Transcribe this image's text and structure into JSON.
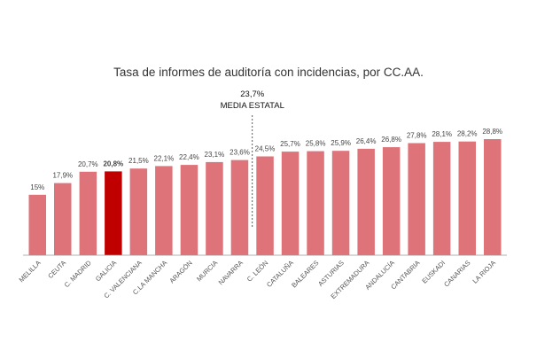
{
  "colors": {
    "bar": "#df737a",
    "highlight": "#c00000",
    "highlight_label": "#c00000",
    "axis": "#999999",
    "avg_line": "#333333"
  },
  "chart_data": {
    "type": "bar",
    "title": "Tasa de informes de auditoría con incidencias, por CC.AA.",
    "xlabel": "",
    "ylabel": "",
    "ylim": [
      0,
      30
    ],
    "grid": false,
    "categories": [
      "MELILLA",
      "CEUTA",
      "C. MADRID",
      "GALICIA",
      "C. VALENCIANA",
      "C.LA MANCHA",
      "ARAGÓN",
      "MURCIA",
      "NAVARRA",
      "C. LEÓN",
      "CATALUÑA",
      "BALEARES",
      "ASTURIAS",
      "EXTREMADURA",
      "ANDALUCÍA",
      "CANTABRIA",
      "EUSKADI",
      "CANARIAS",
      "LA RIOJA"
    ],
    "values": [
      15,
      17.9,
      20.7,
      20.8,
      21.5,
      22.1,
      22.4,
      23.1,
      23.6,
      24.5,
      25.7,
      25.8,
      25.9,
      26.4,
      26.8,
      27.8,
      28.1,
      28.2,
      28.8
    ],
    "value_labels": [
      "15%",
      "17,9%",
      "20,7%",
      "20,8%",
      "21,5%",
      "22,1%",
      "22,4%",
      "23,1%",
      "23,6%",
      "24,5%",
      "25,7%",
      "25,8%",
      "25,9%",
      "26,4%",
      "26,8%",
      "27,8%",
      "28,1%",
      "28,2%",
      "28,8%"
    ],
    "highlight_category": "GALICIA",
    "average": {
      "value": 23.7,
      "value_label": "23,7%",
      "label": "MEDIA ESTATAL"
    }
  }
}
